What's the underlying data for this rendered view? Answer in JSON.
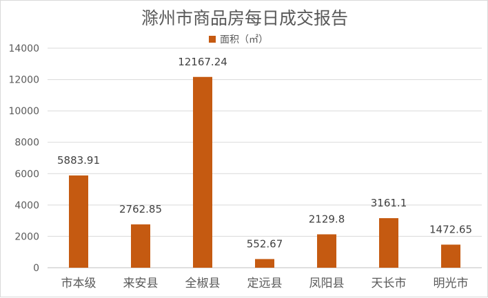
{
  "chart_data": {
    "type": "bar",
    "title": "滁州市商品房每日成交报告",
    "categories": [
      "市本级",
      "来安县",
      "全椒县",
      "定远县",
      "凤阳县",
      "天长市",
      "明光市"
    ],
    "series": [
      {
        "name": "面积（㎡）",
        "values": [
          5883.91,
          2762.85,
          12167.24,
          552.67,
          2129.8,
          3161.1,
          1472.65
        ],
        "labels": [
          "5883.91",
          "2762.85",
          "12167.24",
          "552.67",
          "2129.8",
          "3161.1",
          "1472.65"
        ],
        "color": "#c55a11"
      }
    ],
    "ylim": [
      0,
      14000
    ],
    "yticks": [
      0,
      2000,
      4000,
      6000,
      8000,
      10000,
      12000,
      14000
    ],
    "grid": true,
    "legend_position": "top"
  }
}
